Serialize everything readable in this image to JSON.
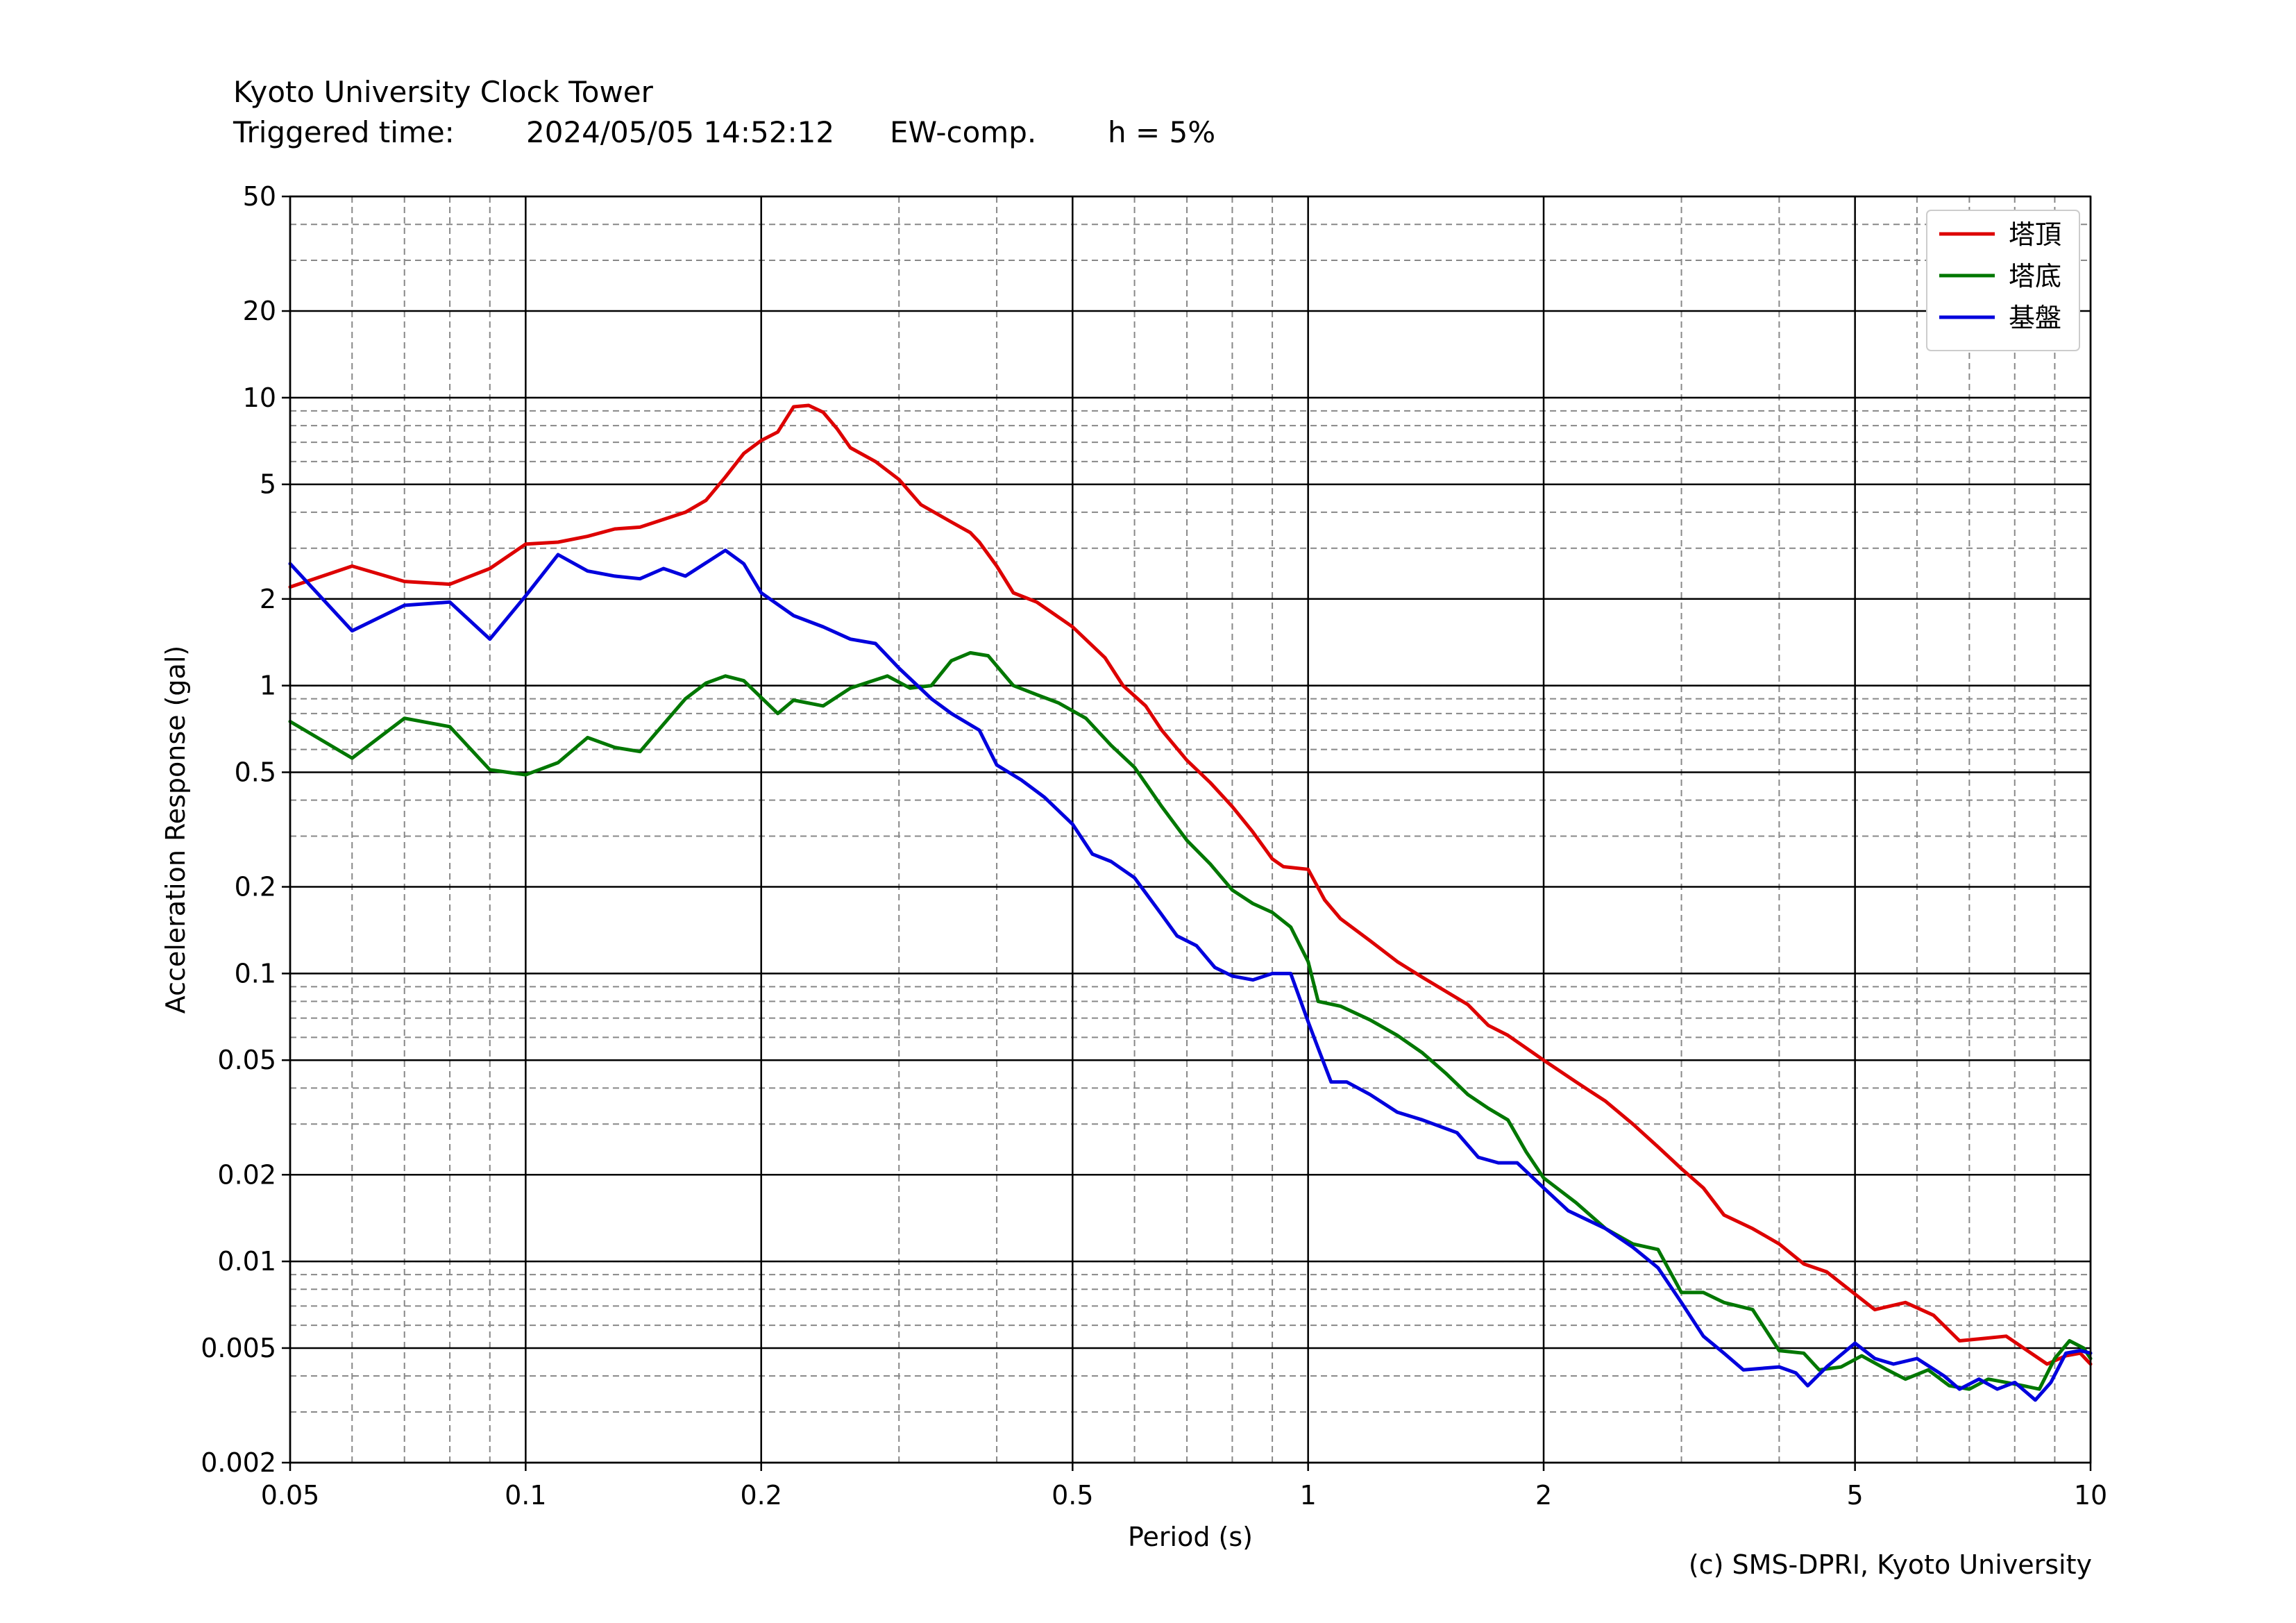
{
  "header": {
    "title": "Kyoto University Clock Tower",
    "triggered_label": "Triggered time:",
    "triggered_value": "2024/05/05 14:52:12",
    "component": "EW-comp.",
    "damping": "h = 5%"
  },
  "credit": "(c) SMS-DPRI, Kyoto University",
  "chart_data": {
    "type": "line",
    "xlabel": "Period (s)",
    "ylabel": "Acceleration Response (gal)",
    "x_scale": "log",
    "y_scale": "log",
    "xlim": [
      0.05,
      10
    ],
    "ylim": [
      0.002,
      50
    ],
    "x_ticks": [
      0.05,
      0.1,
      0.2,
      0.5,
      1,
      2,
      5,
      10
    ],
    "x_tick_labels": [
      "0.05",
      "0.1",
      "0.2",
      "0.5",
      "1",
      "2",
      "5",
      "10"
    ],
    "y_ticks": [
      0.002,
      0.005,
      0.01,
      0.02,
      0.05,
      0.1,
      0.2,
      0.5,
      1,
      2,
      5,
      10,
      20,
      50
    ],
    "y_tick_labels": [
      "0.002",
      "0.005",
      "0.01",
      "0.02",
      "0.05",
      "0.1",
      "0.2",
      "0.5",
      "1",
      "2",
      "5",
      "10",
      "20",
      "50"
    ],
    "grid": "major solid, minor dashed",
    "legend_position": "top-right",
    "series": [
      {
        "name": "塔頂",
        "color": "#dd0000",
        "points": [
          [
            0.05,
            2.2
          ],
          [
            0.06,
            2.6
          ],
          [
            0.07,
            2.3
          ],
          [
            0.08,
            2.25
          ],
          [
            0.09,
            2.55
          ],
          [
            0.1,
            3.1
          ],
          [
            0.11,
            3.15
          ],
          [
            0.12,
            3.3
          ],
          [
            0.13,
            3.5
          ],
          [
            0.14,
            3.55
          ],
          [
            0.16,
            4.0
          ],
          [
            0.17,
            4.4
          ],
          [
            0.18,
            5.3
          ],
          [
            0.19,
            6.4
          ],
          [
            0.2,
            7.1
          ],
          [
            0.21,
            7.6
          ],
          [
            0.22,
            9.3
          ],
          [
            0.23,
            9.4
          ],
          [
            0.24,
            8.9
          ],
          [
            0.25,
            7.8
          ],
          [
            0.26,
            6.7
          ],
          [
            0.28,
            6.0
          ],
          [
            0.3,
            5.2
          ],
          [
            0.32,
            4.25
          ],
          [
            0.35,
            3.7
          ],
          [
            0.37,
            3.4
          ],
          [
            0.38,
            3.15
          ],
          [
            0.4,
            2.6
          ],
          [
            0.42,
            2.1
          ],
          [
            0.45,
            1.95
          ],
          [
            0.5,
            1.6
          ],
          [
            0.55,
            1.25
          ],
          [
            0.58,
            1.0
          ],
          [
            0.62,
            0.85
          ],
          [
            0.65,
            0.7
          ],
          [
            0.7,
            0.55
          ],
          [
            0.75,
            0.46
          ],
          [
            0.8,
            0.38
          ],
          [
            0.85,
            0.31
          ],
          [
            0.9,
            0.25
          ],
          [
            0.93,
            0.235
          ],
          [
            1.0,
            0.23
          ],
          [
            1.05,
            0.18
          ],
          [
            1.1,
            0.155
          ],
          [
            1.2,
            0.13
          ],
          [
            1.3,
            0.11
          ],
          [
            1.4,
            0.097
          ],
          [
            1.6,
            0.078
          ],
          [
            1.7,
            0.066
          ],
          [
            1.8,
            0.061
          ],
          [
            2.0,
            0.05
          ],
          [
            2.2,
            0.042
          ],
          [
            2.4,
            0.036
          ],
          [
            2.6,
            0.03
          ],
          [
            2.8,
            0.025
          ],
          [
            3.0,
            0.021
          ],
          [
            3.2,
            0.018
          ],
          [
            3.4,
            0.0145
          ],
          [
            3.7,
            0.013
          ],
          [
            4.0,
            0.0115
          ],
          [
            4.3,
            0.0098
          ],
          [
            4.6,
            0.0092
          ],
          [
            5.0,
            0.0077
          ],
          [
            5.3,
            0.0068
          ],
          [
            5.8,
            0.0072
          ],
          [
            6.3,
            0.0065
          ],
          [
            6.8,
            0.0053
          ],
          [
            7.3,
            0.0054
          ],
          [
            7.8,
            0.0055
          ],
          [
            8.3,
            0.0049
          ],
          [
            8.8,
            0.0044
          ],
          [
            9.3,
            0.0047
          ],
          [
            9.7,
            0.0048
          ],
          [
            10.0,
            0.0044
          ]
        ]
      },
      {
        "name": "塔底",
        "color": "#007700",
        "points": [
          [
            0.05,
            0.75
          ],
          [
            0.06,
            0.56
          ],
          [
            0.07,
            0.77
          ],
          [
            0.08,
            0.72
          ],
          [
            0.09,
            0.51
          ],
          [
            0.1,
            0.49
          ],
          [
            0.11,
            0.54
          ],
          [
            0.12,
            0.66
          ],
          [
            0.13,
            0.61
          ],
          [
            0.14,
            0.59
          ],
          [
            0.16,
            0.9
          ],
          [
            0.17,
            1.02
          ],
          [
            0.18,
            1.08
          ],
          [
            0.19,
            1.04
          ],
          [
            0.21,
            0.8
          ],
          [
            0.22,
            0.89
          ],
          [
            0.24,
            0.85
          ],
          [
            0.26,
            0.98
          ],
          [
            0.29,
            1.08
          ],
          [
            0.31,
            0.98
          ],
          [
            0.33,
            1.0
          ],
          [
            0.35,
            1.22
          ],
          [
            0.37,
            1.3
          ],
          [
            0.39,
            1.27
          ],
          [
            0.42,
            1.0
          ],
          [
            0.45,
            0.93
          ],
          [
            0.48,
            0.87
          ],
          [
            0.52,
            0.77
          ],
          [
            0.56,
            0.62
          ],
          [
            0.6,
            0.52
          ],
          [
            0.65,
            0.38
          ],
          [
            0.7,
            0.29
          ],
          [
            0.75,
            0.24
          ],
          [
            0.8,
            0.195
          ],
          [
            0.85,
            0.175
          ],
          [
            0.9,
            0.163
          ],
          [
            0.95,
            0.145
          ],
          [
            1.0,
            0.11
          ],
          [
            1.03,
            0.08
          ],
          [
            1.1,
            0.077
          ],
          [
            1.2,
            0.069
          ],
          [
            1.3,
            0.061
          ],
          [
            1.4,
            0.053
          ],
          [
            1.5,
            0.045
          ],
          [
            1.6,
            0.038
          ],
          [
            1.7,
            0.034
          ],
          [
            1.8,
            0.031
          ],
          [
            1.9,
            0.024
          ],
          [
            2.0,
            0.0195
          ],
          [
            2.2,
            0.016
          ],
          [
            2.4,
            0.013
          ],
          [
            2.6,
            0.0115
          ],
          [
            2.8,
            0.011
          ],
          [
            3.0,
            0.0078
          ],
          [
            3.2,
            0.0078
          ],
          [
            3.4,
            0.0072
          ],
          [
            3.7,
            0.0068
          ],
          [
            4.0,
            0.0049
          ],
          [
            4.3,
            0.0048
          ],
          [
            4.5,
            0.0042
          ],
          [
            4.8,
            0.0043
          ],
          [
            5.1,
            0.0047
          ],
          [
            5.5,
            0.0042
          ],
          [
            5.8,
            0.0039
          ],
          [
            6.2,
            0.0042
          ],
          [
            6.6,
            0.0037
          ],
          [
            7.0,
            0.0036
          ],
          [
            7.4,
            0.0039
          ],
          [
            7.8,
            0.0038
          ],
          [
            8.2,
            0.0037
          ],
          [
            8.6,
            0.0036
          ],
          [
            9.0,
            0.0046
          ],
          [
            9.4,
            0.0053
          ],
          [
            9.8,
            0.005
          ],
          [
            10.0,
            0.0046
          ]
        ]
      },
      {
        "name": "基盤",
        "color": "#0000dd",
        "points": [
          [
            0.05,
            2.65
          ],
          [
            0.06,
            1.55
          ],
          [
            0.07,
            1.9
          ],
          [
            0.08,
            1.95
          ],
          [
            0.09,
            1.45
          ],
          [
            0.1,
            2.05
          ],
          [
            0.11,
            2.85
          ],
          [
            0.12,
            2.5
          ],
          [
            0.13,
            2.4
          ],
          [
            0.14,
            2.35
          ],
          [
            0.15,
            2.55
          ],
          [
            0.16,
            2.4
          ],
          [
            0.18,
            2.95
          ],
          [
            0.19,
            2.65
          ],
          [
            0.2,
            2.1
          ],
          [
            0.22,
            1.75
          ],
          [
            0.24,
            1.6
          ],
          [
            0.26,
            1.45
          ],
          [
            0.28,
            1.4
          ],
          [
            0.3,
            1.15
          ],
          [
            0.33,
            0.9
          ],
          [
            0.35,
            0.8
          ],
          [
            0.38,
            0.7
          ],
          [
            0.4,
            0.53
          ],
          [
            0.43,
            0.47
          ],
          [
            0.46,
            0.41
          ],
          [
            0.5,
            0.33
          ],
          [
            0.53,
            0.26
          ],
          [
            0.56,
            0.245
          ],
          [
            0.6,
            0.215
          ],
          [
            0.65,
            0.16
          ],
          [
            0.68,
            0.135
          ],
          [
            0.72,
            0.125
          ],
          [
            0.76,
            0.105
          ],
          [
            0.8,
            0.098
          ],
          [
            0.85,
            0.095
          ],
          [
            0.9,
            0.1
          ],
          [
            0.95,
            0.1
          ],
          [
            1.0,
            0.068
          ],
          [
            1.03,
            0.055
          ],
          [
            1.07,
            0.042
          ],
          [
            1.12,
            0.042
          ],
          [
            1.2,
            0.038
          ],
          [
            1.3,
            0.033
          ],
          [
            1.4,
            0.031
          ],
          [
            1.55,
            0.028
          ],
          [
            1.65,
            0.023
          ],
          [
            1.75,
            0.022
          ],
          [
            1.85,
            0.022
          ],
          [
            2.0,
            0.018
          ],
          [
            2.15,
            0.015
          ],
          [
            2.4,
            0.013
          ],
          [
            2.6,
            0.0112
          ],
          [
            2.8,
            0.0095
          ],
          [
            3.0,
            0.0072
          ],
          [
            3.2,
            0.0055
          ],
          [
            3.4,
            0.0048
          ],
          [
            3.6,
            0.0042
          ],
          [
            4.0,
            0.0043
          ],
          [
            4.2,
            0.0041
          ],
          [
            4.35,
            0.0037
          ],
          [
            4.6,
            0.0043
          ],
          [
            5.0,
            0.0052
          ],
          [
            5.3,
            0.0046
          ],
          [
            5.6,
            0.0044
          ],
          [
            6.0,
            0.0046
          ],
          [
            6.5,
            0.004
          ],
          [
            6.8,
            0.0036
          ],
          [
            7.2,
            0.0039
          ],
          [
            7.6,
            0.0036
          ],
          [
            8.0,
            0.0038
          ],
          [
            8.5,
            0.0033
          ],
          [
            8.9,
            0.0038
          ],
          [
            9.3,
            0.0048
          ],
          [
            9.7,
            0.0049
          ],
          [
            10.0,
            0.0048
          ]
        ]
      }
    ]
  }
}
